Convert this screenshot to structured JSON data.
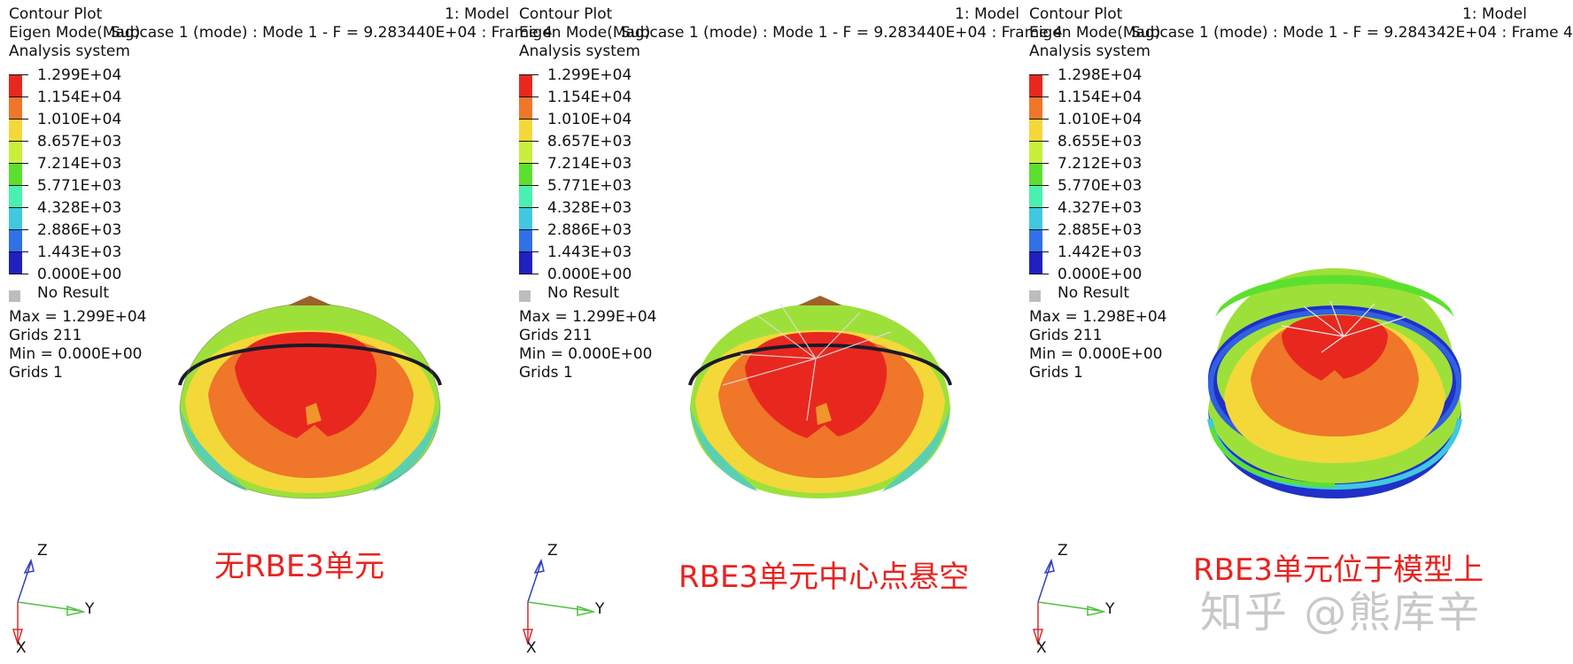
{
  "panels": [
    {
      "title_line1": "Contour Plot",
      "model": "1: Model",
      "title_line2": "Eigen Mode(Mag)",
      "subcase": "Subcase 1 (mode) : Mode 1 - F = 9.283440E+04 : Frame 4",
      "title_line3": "Analysis system",
      "legend_values": [
        "1.299E+04",
        "1.154E+04",
        "1.010E+04",
        "8.657E+03",
        "7.214E+03",
        "5.771E+03",
        "4.328E+03",
        "2.886E+03",
        "1.443E+03",
        "0.000E+00"
      ],
      "no_result": "No Result",
      "max_line": "Max =  1.299E+04",
      "max_grid": "Grids 211",
      "min_line": "Min =  0.000E+00",
      "min_grid": "Grids 1",
      "caption": "无RBE3单元",
      "axes": {
        "z": "Z",
        "y": "Y",
        "x": "X"
      }
    },
    {
      "title_line1": "Contour Plot",
      "model": "1: Model",
      "title_line2": "Eigen Mode(Mag)",
      "subcase": "Subcase 1 (mode) : Mode 1 - F = 9.283440E+04 : Frame 4",
      "title_line3": "Analysis system",
      "legend_values": [
        "1.299E+04",
        "1.154E+04",
        "1.010E+04",
        "8.657E+03",
        "7.214E+03",
        "5.771E+03",
        "4.328E+03",
        "2.886E+03",
        "1.443E+03",
        "0.000E+00"
      ],
      "no_result": "No Result",
      "max_line": "Max =  1.299E+04",
      "max_grid": "Grids 211",
      "min_line": "Min =  0.000E+00",
      "min_grid": "Grids 1",
      "caption": "RBE3单元中心点悬空",
      "axes": {
        "z": "Z",
        "y": "Y",
        "x": "X"
      }
    },
    {
      "title_line1": "Contour Plot",
      "model": "1: Model",
      "title_line2": "Eigen Mode(Mag)",
      "subcase": "Subcase 1 (mode) : Mode 1 - F = 9.284342E+04 : Frame 4",
      "title_line3": "Analysis system",
      "legend_values": [
        "1.298E+04",
        "1.154E+04",
        "1.010E+04",
        "8.655E+03",
        "7.212E+03",
        "5.770E+03",
        "4.327E+03",
        "2.885E+03",
        "1.442E+03",
        "0.000E+00"
      ],
      "no_result": "No Result",
      "max_line": "Max =  1.298E+04",
      "max_grid": "Grids 211",
      "min_line": "Min =  0.000E+00",
      "min_grid": "Grids 1",
      "caption": "RBE3单元位于模型上",
      "axes": {
        "z": "Z",
        "y": "Y",
        "x": "X"
      }
    }
  ],
  "legend_colors": [
    "#e8281f",
    "#f0762a",
    "#f4d83a",
    "#c8f03a",
    "#5ce02e",
    "#4af0b0",
    "#3fc8e0",
    "#3070e8",
    "#2020c0"
  ],
  "watermark": "知乎 @熊库辛"
}
